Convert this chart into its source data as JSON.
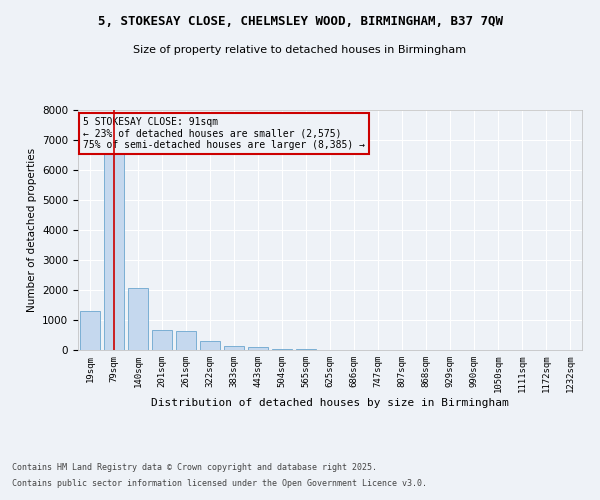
{
  "title_line1": "5, STOKESAY CLOSE, CHELMSLEY WOOD, BIRMINGHAM, B37 7QW",
  "title_line2": "Size of property relative to detached houses in Birmingham",
  "xlabel": "Distribution of detached houses by size in Birmingham",
  "ylabel": "Number of detached properties",
  "categories": [
    "19sqm",
    "79sqm",
    "140sqm",
    "201sqm",
    "261sqm",
    "322sqm",
    "383sqm",
    "443sqm",
    "504sqm",
    "565sqm",
    "625sqm",
    "686sqm",
    "747sqm",
    "807sqm",
    "868sqm",
    "929sqm",
    "990sqm",
    "1050sqm",
    "1111sqm",
    "1172sqm",
    "1232sqm"
  ],
  "values": [
    1300,
    6600,
    2080,
    660,
    630,
    295,
    140,
    90,
    50,
    25,
    10,
    5,
    4,
    3,
    3,
    2,
    2,
    1,
    1,
    1,
    1
  ],
  "bar_color": "#c5d8ee",
  "bar_edge_color": "#7bafd4",
  "marker_color": "#cc0000",
  "annotation_title": "5 STOKESAY CLOSE: 91sqm",
  "annotation_line2": "← 23% of detached houses are smaller (2,575)",
  "annotation_line3": "75% of semi-detached houses are larger (8,385) →",
  "annotation_box_color": "#cc0000",
  "ylim": [
    0,
    8000
  ],
  "yticks": [
    0,
    1000,
    2000,
    3000,
    4000,
    5000,
    6000,
    7000,
    8000
  ],
  "footnote_line1": "Contains HM Land Registry data © Crown copyright and database right 2025.",
  "footnote_line2": "Contains public sector information licensed under the Open Government Licence v3.0.",
  "bg_color": "#eef2f7",
  "grid_color": "#ffffff"
}
